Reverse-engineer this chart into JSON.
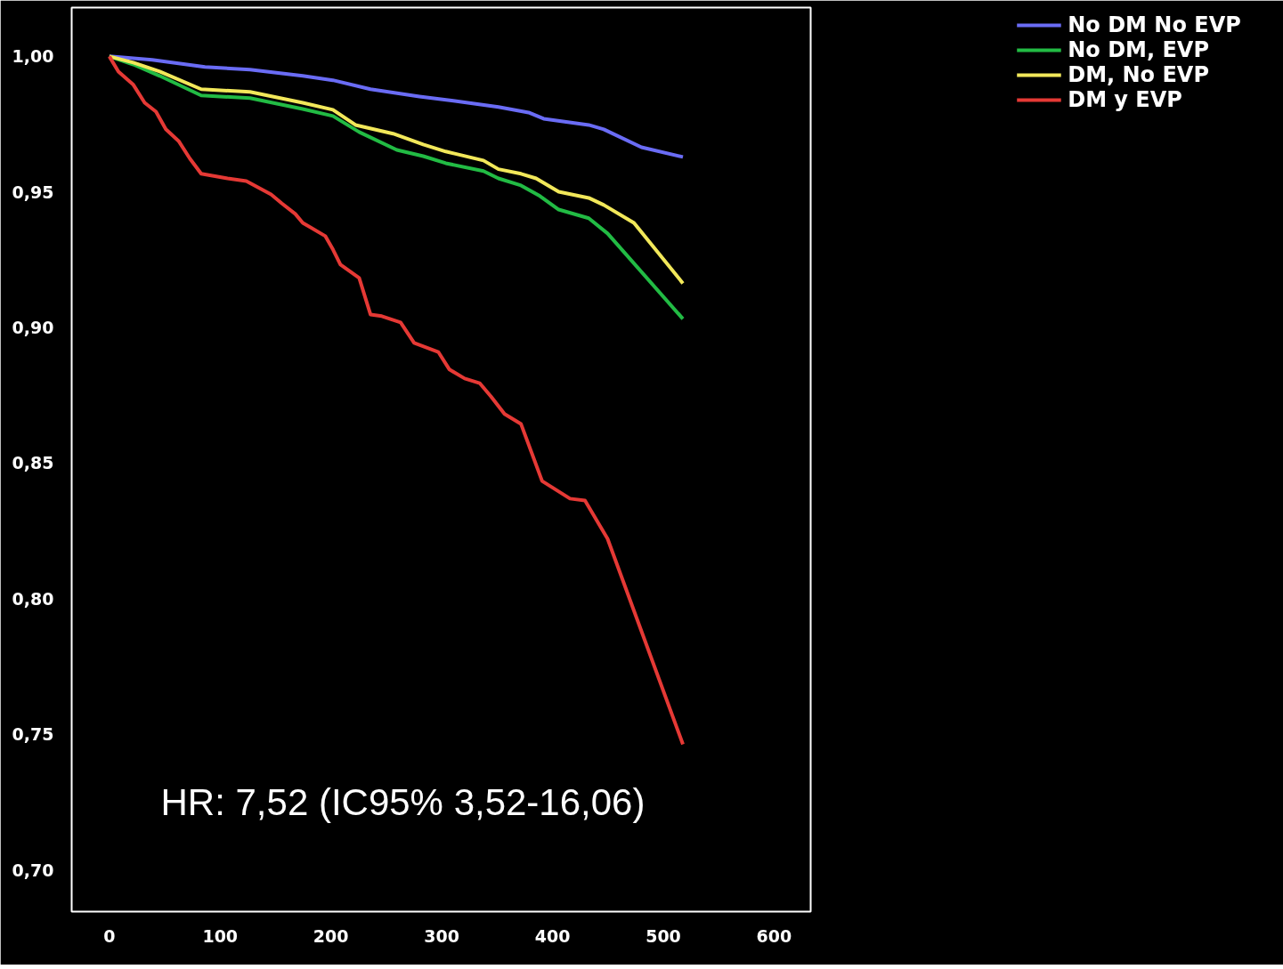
{
  "chart_data": {
    "type": "line",
    "xlim": [
      -34,
      633
    ],
    "ylim": [
      0.6846,
      1.018
    ],
    "xticks": [
      0,
      100,
      200,
      300,
      400,
      500,
      600
    ],
    "yticks": [
      {
        "value": 0.7,
        "label": "0,70"
      },
      {
        "value": 0.75,
        "label": "0,75"
      },
      {
        "value": 0.8,
        "label": "0,80"
      },
      {
        "value": 0.85,
        "label": "0,85"
      },
      {
        "value": 0.9,
        "label": "0,90"
      },
      {
        "value": 0.95,
        "label": "0,95"
      },
      {
        "value": 1.0,
        "label": "1,00"
      }
    ],
    "grid": false,
    "legend": "top right",
    "line_style": "solid",
    "marker": "none",
    "annotations": [
      "HR: 7,52 (IC95% 3,52-16,06)"
    ],
    "series": [
      {
        "name": "No DM No EVP",
        "color": "#6a6cf5",
        "x": [
          0,
          38.7,
          86.3,
          127,
          174.6,
          201.8,
          235.7,
          279.9,
          310.5,
          351.2,
          378.4,
          392,
          432.7,
          446.3,
          480.3,
          517.7
        ],
        "values": [
          1.0,
          0.9987,
          0.9961,
          0.9951,
          0.9928,
          0.9912,
          0.9879,
          0.9852,
          0.9836,
          0.9813,
          0.9793,
          0.977,
          0.9747,
          0.9731,
          0.9665,
          0.9629
        ]
      },
      {
        "name": "No DM, EVP",
        "color": "#22bb44",
        "x": [
          0,
          21.7,
          45.5,
          82.9,
          127,
          174.6,
          201.8,
          225.5,
          259.5,
          283.3,
          303.7,
          337.7,
          351.2,
          371.6,
          388.6,
          405.6,
          432.7,
          449.7,
          517.7
        ],
        "values": [
          1.0,
          0.997,
          0.9928,
          0.9856,
          0.9846,
          0.9806,
          0.978,
          0.9721,
          0.9655,
          0.9632,
          0.9606,
          0.9577,
          0.955,
          0.9524,
          0.9485,
          0.9435,
          0.9403,
          0.9347,
          0.9032
        ]
      },
      {
        "name": "DM, No EVP",
        "color": "#f2e85a",
        "x": [
          0,
          21.7,
          45.5,
          82.9,
          127,
          174.6,
          201.8,
          222.2,
          256.1,
          283.3,
          303.7,
          337.7,
          351.2,
          371.6,
          385.2,
          405.6,
          432.7,
          446.3,
          473.5,
          517.7
        ],
        "values": [
          1.0,
          0.9977,
          0.9944,
          0.9879,
          0.9869,
          0.9829,
          0.9803,
          0.9747,
          0.9715,
          0.9675,
          0.9649,
          0.9616,
          0.9584,
          0.9567,
          0.955,
          0.9501,
          0.9478,
          0.9452,
          0.9386,
          0.9163
        ]
      },
      {
        "name": "DM y EVP",
        "color": "#e53935",
        "x": [
          0,
          8.2,
          21.7,
          31.9,
          42.1,
          51,
          62.5,
          72.7,
          82.9,
          106.7,
          123.6,
          146,
          155.6,
          167.8,
          174.6,
          195,
          201.8,
          208.6,
          225.5,
          235.7,
          245.9,
          262.9,
          275.1,
          296.9,
          307,
          320.7,
          334.2,
          344.4,
          356.7,
          371.6,
          390.6,
          415.8,
          429.3,
          449.7,
          517.7
        ],
        "values": [
          1.0,
          0.9944,
          0.9895,
          0.9829,
          0.9796,
          0.9731,
          0.9688,
          0.9623,
          0.9567,
          0.955,
          0.954,
          0.9491,
          0.9458,
          0.9419,
          0.9386,
          0.9337,
          0.9288,
          0.9232,
          0.9183,
          0.9048,
          0.9042,
          0.9019,
          0.8943,
          0.891,
          0.8845,
          0.8812,
          0.8795,
          0.8746,
          0.8681,
          0.8644,
          0.8434,
          0.8369,
          0.8362,
          0.8221,
          0.7463
        ]
      }
    ]
  }
}
